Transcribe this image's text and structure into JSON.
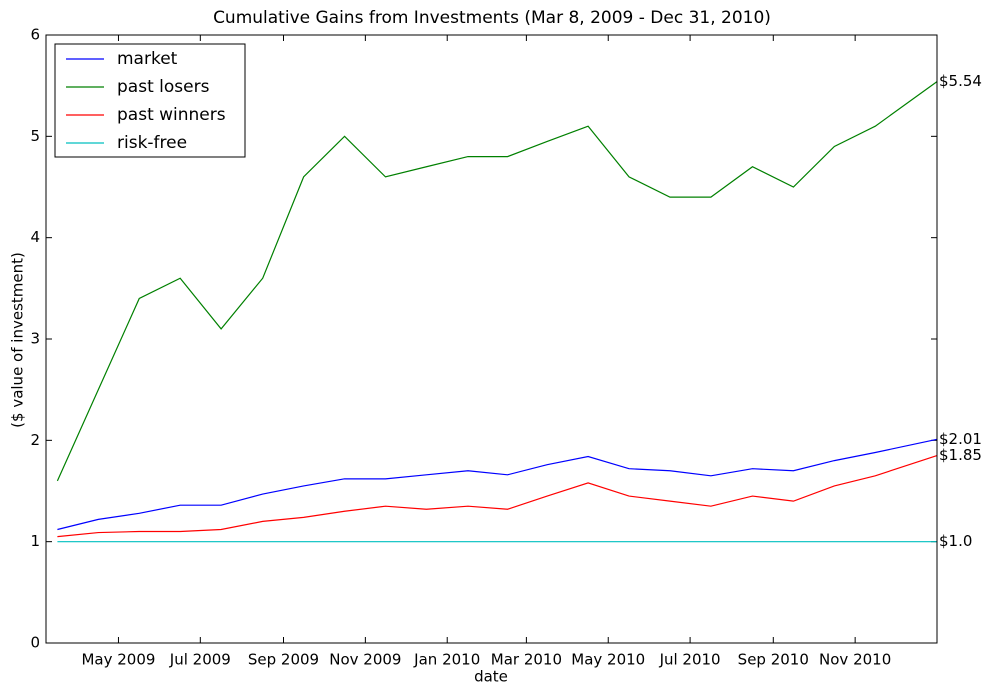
{
  "chart_data": {
    "type": "line",
    "title": "Cumulative Gains from Investments (Mar 8, 2009 - Dec 31, 2010)",
    "x_label": "date",
    "y_label": "($ value of investment)",
    "x": [
      "2009-03",
      "2009-04",
      "2009-05",
      "2009-06",
      "2009-07",
      "2009-08",
      "2009-09",
      "2009-10",
      "2009-11",
      "2009-12",
      "2010-01",
      "2010-02",
      "2010-03",
      "2010-04",
      "2010-05",
      "2010-06",
      "2010-07",
      "2010-08",
      "2010-09",
      "2010-10",
      "2010-11",
      "2010-12"
    ],
    "xlim": [
      "2009-03",
      "2010-12"
    ],
    "xticks": [
      {
        "value": "2009-05",
        "label": "May 2009"
      },
      {
        "value": "2009-07",
        "label": "Jul 2009"
      },
      {
        "value": "2009-09",
        "label": "Sep 2009"
      },
      {
        "value": "2009-11",
        "label": "Nov 2009"
      },
      {
        "value": "2010-01",
        "label": "Jan 2010"
      },
      {
        "value": "2010-03",
        "label": "Mar 2010"
      },
      {
        "value": "2010-05",
        "label": "May 2010"
      },
      {
        "value": "2010-07",
        "label": "Jul 2010"
      },
      {
        "value": "2010-09",
        "label": "Sep 2010"
      },
      {
        "value": "2010-11",
        "label": "Nov 2010"
      }
    ],
    "ylim": [
      0,
      6
    ],
    "yticks": [
      0,
      1,
      2,
      3,
      4,
      5,
      6
    ],
    "legend": "upper left",
    "series": [
      {
        "name": "market",
        "color": "#0000ff",
        "end_label": "$2.01",
        "values": [
          1.12,
          1.22,
          1.28,
          1.36,
          1.36,
          1.47,
          1.55,
          1.62,
          1.62,
          1.66,
          1.7,
          1.66,
          1.76,
          1.84,
          1.72,
          1.7,
          1.65,
          1.72,
          1.7,
          1.8,
          1.88,
          2.01
        ]
      },
      {
        "name": "past losers",
        "color": "#008000",
        "end_label": "$5.54",
        "values": [
          1.6,
          2.5,
          3.4,
          3.6,
          3.1,
          3.6,
          4.6,
          5.0,
          4.6,
          4.7,
          4.8,
          4.8,
          4.95,
          5.1,
          4.6,
          4.4,
          4.4,
          4.7,
          4.5,
          4.9,
          5.1,
          5.54
        ]
      },
      {
        "name": "past winners",
        "color": "#ff0000",
        "end_label": "$1.85",
        "values": [
          1.05,
          1.09,
          1.1,
          1.1,
          1.12,
          1.2,
          1.24,
          1.3,
          1.35,
          1.32,
          1.35,
          1.32,
          1.45,
          1.58,
          1.45,
          1.4,
          1.35,
          1.45,
          1.4,
          1.55,
          1.65,
          1.85
        ]
      },
      {
        "name": "risk-free",
        "color": "#00bfbf",
        "end_label": "$1.0",
        "values": [
          1,
          1,
          1,
          1,
          1,
          1,
          1,
          1,
          1,
          1,
          1,
          1,
          1,
          1,
          1,
          1,
          1,
          1,
          1,
          1,
          1,
          1
        ]
      }
    ]
  }
}
